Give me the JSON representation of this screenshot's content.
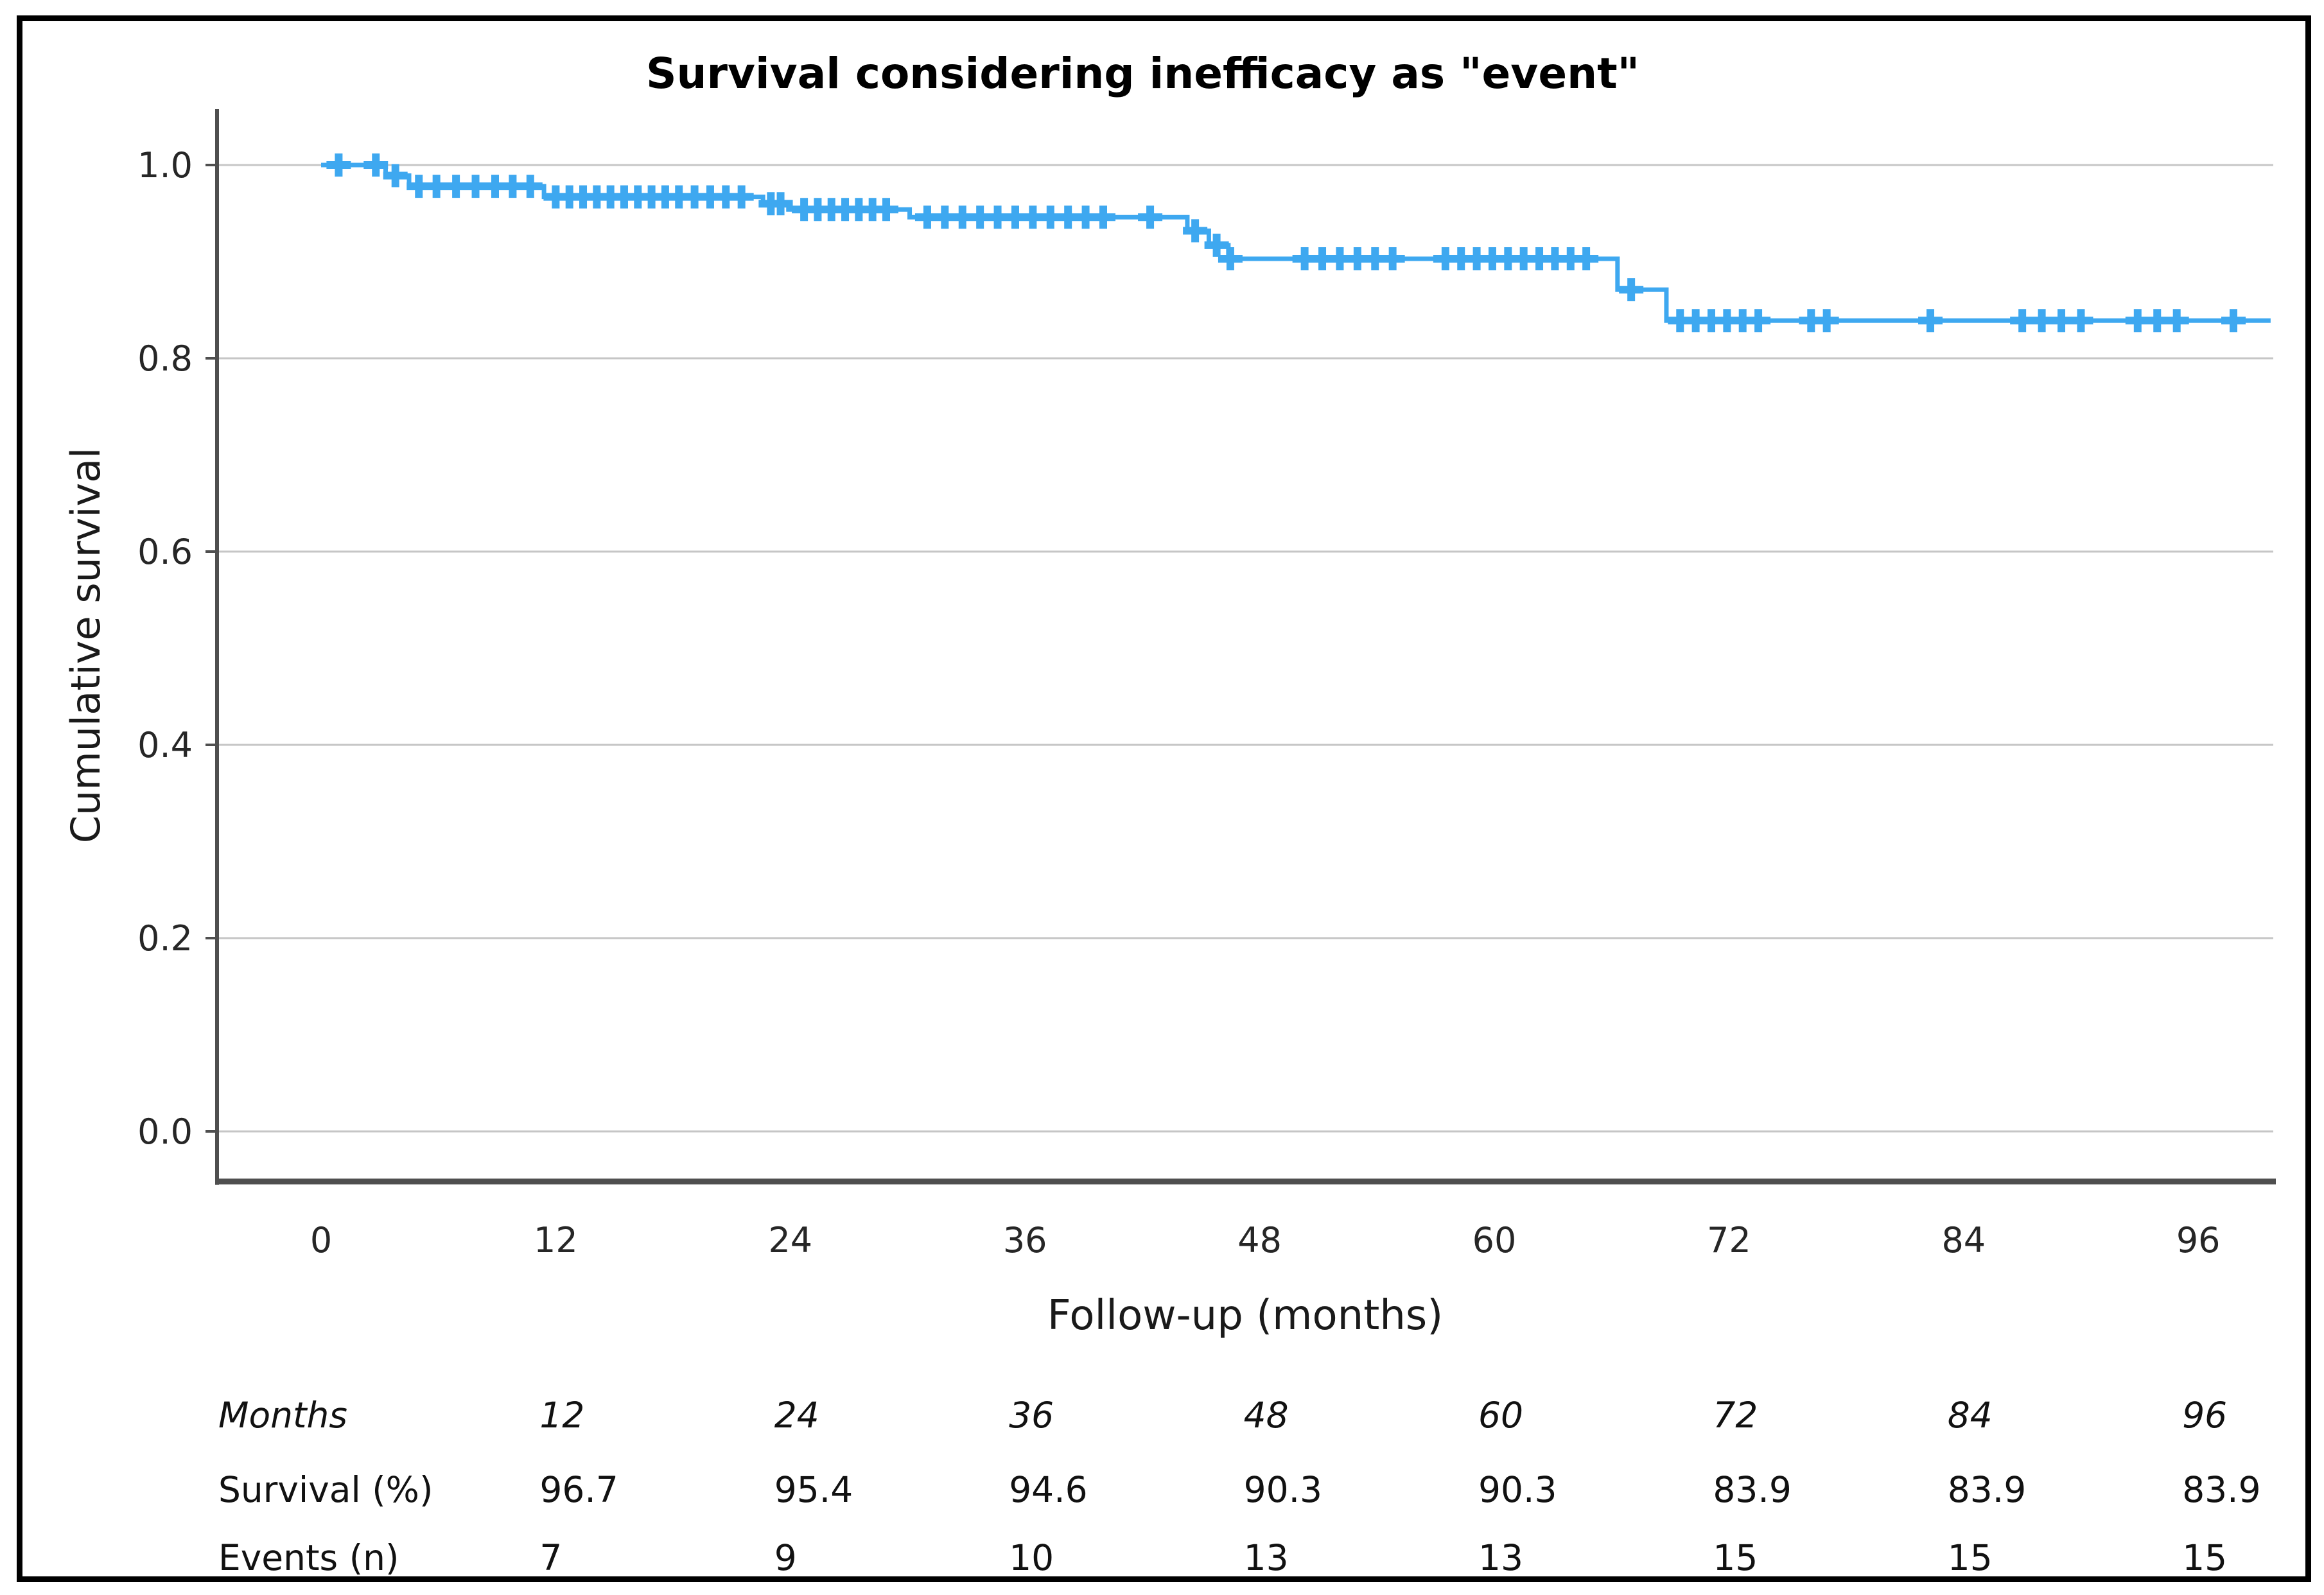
{
  "figure": {
    "border_color": "#000000",
    "background": "#ffffff"
  },
  "chart_data": {
    "type": "line",
    "subtype": "kaplan-meier-step",
    "title": "Survival considering inefficacy as \"event\"",
    "xlabel": "Follow-up (months)",
    "ylabel": "Cumulative survival",
    "x_ticks": [
      0,
      12,
      24,
      36,
      48,
      60,
      72,
      84,
      96
    ],
    "y_ticks": [
      1.0,
      0.8,
      0.6,
      0.4,
      0.2,
      0.0
    ],
    "y_tick_labels": [
      "1.0",
      "0.8",
      "0.6",
      "0.4",
      "0.2",
      "0.0"
    ],
    "xlim": [
      -5.3,
      99.8
    ],
    "ylim": [
      -0.05,
      1.06
    ],
    "grid": true,
    "legend_position": "none",
    "line_color": "#3EA8F0",
    "grid_color": "#C6C6C6",
    "axis_color": "#4F4F4F",
    "tick_text_color": "#262626",
    "series": [
      {
        "name": "Cumulative survival",
        "steps": [
          [
            0,
            1.0
          ],
          [
            3.3,
            0.989
          ],
          [
            4.5,
            0.978
          ],
          [
            11.4,
            0.967
          ],
          [
            22.6,
            0.96
          ],
          [
            23.9,
            0.954
          ],
          [
            30.1,
            0.946
          ],
          [
            44.3,
            0.932
          ],
          [
            45.4,
            0.917
          ],
          [
            46.4,
            0.903
          ],
          [
            66.3,
            0.871
          ],
          [
            68.8,
            0.839
          ]
        ],
        "end_time": 99.7,
        "censor_marks": [
          [
            0.9,
            1.0
          ],
          [
            2.8,
            1.0
          ],
          [
            3.8,
            0.989
          ],
          [
            5.0,
            0.978
          ],
          [
            5.9,
            0.978
          ],
          [
            6.9,
            0.978
          ],
          [
            7.9,
            0.978
          ],
          [
            8.9,
            0.978
          ],
          [
            9.8,
            0.978
          ],
          [
            10.7,
            0.978
          ],
          [
            12.0,
            0.967
          ],
          [
            12.7,
            0.967
          ],
          [
            13.4,
            0.967
          ],
          [
            14.1,
            0.967
          ],
          [
            14.8,
            0.967
          ],
          [
            15.5,
            0.967
          ],
          [
            16.2,
            0.967
          ],
          [
            16.9,
            0.967
          ],
          [
            17.6,
            0.967
          ],
          [
            18.3,
            0.967
          ],
          [
            19.1,
            0.967
          ],
          [
            19.9,
            0.967
          ],
          [
            20.7,
            0.967
          ],
          [
            21.5,
            0.967
          ],
          [
            23.0,
            0.96
          ],
          [
            23.5,
            0.96
          ],
          [
            24.7,
            0.954
          ],
          [
            25.4,
            0.954
          ],
          [
            26.1,
            0.954
          ],
          [
            26.8,
            0.954
          ],
          [
            27.5,
            0.954
          ],
          [
            28.2,
            0.954
          ],
          [
            28.9,
            0.954
          ],
          [
            31.0,
            0.946
          ],
          [
            31.9,
            0.946
          ],
          [
            32.8,
            0.946
          ],
          [
            33.7,
            0.946
          ],
          [
            34.6,
            0.946
          ],
          [
            35.5,
            0.946
          ],
          [
            36.4,
            0.946
          ],
          [
            37.3,
            0.946
          ],
          [
            38.2,
            0.946
          ],
          [
            39.1,
            0.946
          ],
          [
            40.0,
            0.946
          ],
          [
            42.4,
            0.946
          ],
          [
            44.7,
            0.932
          ],
          [
            45.8,
            0.917
          ],
          [
            46.5,
            0.903
          ],
          [
            50.3,
            0.903
          ],
          [
            51.2,
            0.903
          ],
          [
            52.1,
            0.903
          ],
          [
            53.0,
            0.903
          ],
          [
            53.9,
            0.903
          ],
          [
            54.8,
            0.903
          ],
          [
            57.5,
            0.903
          ],
          [
            58.3,
            0.903
          ],
          [
            59.1,
            0.903
          ],
          [
            59.9,
            0.903
          ],
          [
            60.7,
            0.903
          ],
          [
            61.5,
            0.903
          ],
          [
            62.3,
            0.903
          ],
          [
            63.1,
            0.903
          ],
          [
            63.9,
            0.903
          ],
          [
            64.7,
            0.903
          ],
          [
            67.0,
            0.871
          ],
          [
            69.5,
            0.839
          ],
          [
            70.3,
            0.839
          ],
          [
            71.1,
            0.839
          ],
          [
            71.9,
            0.839
          ],
          [
            72.7,
            0.839
          ],
          [
            73.5,
            0.839
          ],
          [
            76.2,
            0.839
          ],
          [
            77.0,
            0.839
          ],
          [
            82.3,
            0.839
          ],
          [
            87.0,
            0.839
          ],
          [
            88.0,
            0.839
          ],
          [
            89.0,
            0.839
          ],
          [
            90.0,
            0.839
          ],
          [
            92.9,
            0.839
          ],
          [
            93.9,
            0.839
          ],
          [
            94.9,
            0.839
          ],
          [
            97.8,
            0.839
          ]
        ]
      }
    ]
  },
  "summary_table": {
    "columns_months": [
      12,
      24,
      36,
      48,
      60,
      72,
      84,
      96
    ],
    "rows": [
      {
        "label": "Months",
        "italic": true,
        "values": [
          "12",
          "24",
          "36",
          "48",
          "60",
          "72",
          "84",
          "96"
        ]
      },
      {
        "label": "Survival (%)",
        "italic": false,
        "values": [
          "96.7",
          "95.4",
          "94.6",
          "90.3",
          "90.3",
          "83.9",
          "83.9",
          "83.9"
        ]
      },
      {
        "label": "Events (n)",
        "italic": false,
        "values": [
          "7",
          "9",
          "10",
          "13",
          "13",
          "15",
          "15",
          "15"
        ]
      }
    ]
  }
}
